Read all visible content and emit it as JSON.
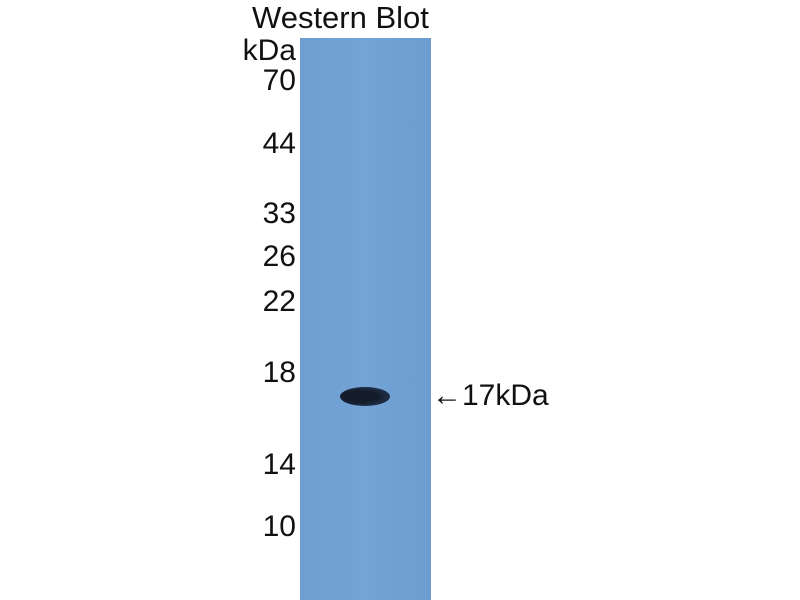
{
  "title": "Western Blot",
  "unit_label": "kDa",
  "markers": [
    "70",
    "44",
    "33",
    "26",
    "22",
    "18",
    "14",
    "10"
  ],
  "band_annotation": "←17kDa",
  "colors": {
    "membrane": "#6f9fd3",
    "band": "#141c2a"
  }
}
